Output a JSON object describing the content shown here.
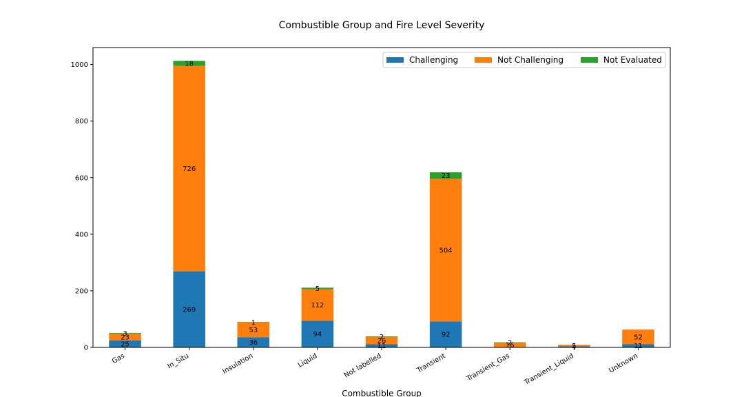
{
  "chart_data": {
    "type": "bar",
    "stacked": true,
    "title": "Combustible Group and Fire Level Severity",
    "xlabel": "Combustible Group",
    "ylabel": "",
    "ylim": [
      0,
      1060
    ],
    "yticks": [
      0,
      200,
      400,
      600,
      800,
      1000
    ],
    "grid": false,
    "legend_position": "top-right",
    "categories": [
      "Gas",
      "In_Situ",
      "Insulation",
      "Liquid",
      "Not labelled",
      "Transient",
      "Transient_Gas",
      "Transient_Liquid",
      "Unknown"
    ],
    "series": [
      {
        "name": "Challenging",
        "color": "#1f77b4",
        "values": [
          25,
          269,
          36,
          94,
          11,
          92,
          0,
          4,
          11
        ]
      },
      {
        "name": "Not Challenging",
        "color": "#ff7f0e",
        "values": [
          23,
          726,
          53,
          112,
          26,
          504,
          16,
          5,
          52
        ]
      },
      {
        "name": "Not Evaluated",
        "color": "#2ca02c",
        "values": [
          3,
          18,
          1,
          5,
          2,
          23,
          2,
          0,
          0
        ]
      }
    ]
  }
}
